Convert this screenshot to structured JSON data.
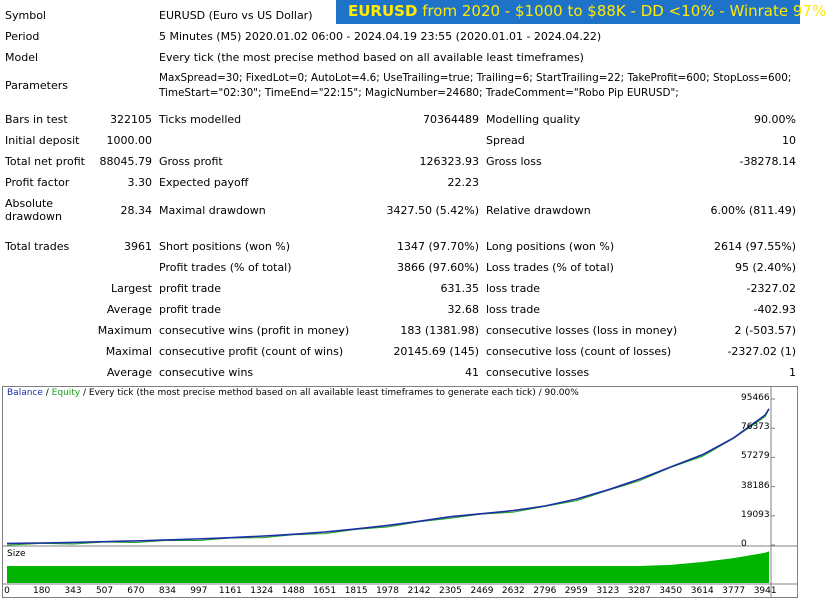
{
  "banner": {
    "symbol": "EURUSD",
    "text": " from 2020 - $1000 to $88K - DD <10% - Winrate 97%"
  },
  "meta": {
    "symbol_label": "Symbol",
    "symbol_value": "EURUSD (Euro vs US Dollar)",
    "period_label": "Period",
    "period_value": "5 Minutes (M5) 2020.01.02 06:00 - 2024.04.19 23:55 (2020.01.01 - 2024.04.22)",
    "model_label": "Model",
    "model_value": "Every tick (the most precise method based on all available least timeframes)",
    "params_label": "Parameters",
    "params_line1": "MaxSpread=30; FixedLot=0; AutoLot=4.6; UseTrailing=true; Trailing=6; StartTrailing=22; TakeProfit=600; StopLoss=600;",
    "params_line2": "TimeStart=\"02:30\"; TimeEnd=\"22:15\"; MagicNumber=24680; TradeComment=\"Robo Pip EURUSD\";"
  },
  "stats": {
    "bars_label": "Bars in test",
    "bars_value": "322105",
    "ticks_label": "Ticks modelled",
    "ticks_value": "70364489",
    "mq_label": "Modelling quality",
    "mq_value": "90.00%",
    "deposit_label": "Initial deposit",
    "deposit_value": "1000.00",
    "spread_label": "Spread",
    "spread_value": "10",
    "netprofit_label": "Total net profit",
    "netprofit_value": "88045.79",
    "grossprofit_label": "Gross profit",
    "grossprofit_value": "126323.93",
    "grossloss_label": "Gross loss",
    "grossloss_value": "-38278.14",
    "pf_label": "Profit factor",
    "pf_value": "3.30",
    "ep_label": "Expected payoff",
    "ep_value": "22.23",
    "absdd_label1": "Absolute",
    "absdd_label2": "drawdown",
    "absdd_value": "28.34",
    "maxdd_label": "Maximal drawdown",
    "maxdd_value": "3427.50 (5.42%)",
    "reldd_label": "Relative drawdown",
    "reldd_value": "6.00% (811.49)",
    "trades_label": "Total trades",
    "trades_value": "3961",
    "short_label": "Short positions (won %)",
    "short_value": "1347 (97.70%)",
    "long_label": "Long positions (won %)",
    "long_value": "2614 (97.55%)",
    "pt_label": "Profit trades (% of total)",
    "pt_value": "3866 (97.60%)",
    "lt_label": "Loss trades (% of total)",
    "lt_value": "95 (2.40%)",
    "largest_label": "Largest",
    "lp_label": "profit trade",
    "lp_value": "631.35",
    "ll_label": "loss trade",
    "ll_value": "-2327.02",
    "average_label": "Average",
    "ap_label": "profit trade",
    "ap_value": "32.68",
    "al_label": "loss trade",
    "al_value": "-402.93",
    "maximum_label": "Maximum",
    "mcw_label": "consecutive wins (profit in money)",
    "mcw_value": "183 (1381.98)",
    "mcl_label": "consecutive losses (loss in money)",
    "mcl_value": "2 (-503.57)",
    "maximal_label": "Maximal",
    "mcp_label": "consecutive profit (count of wins)",
    "mcp_value": "20145.69 (145)",
    "mcloss_label": "consecutive loss (count of losses)",
    "mcloss_value": "-2327.02 (1)",
    "average2_label": "Average",
    "acw_label": "consecutive wins",
    "acw_value": "41",
    "acl_label": "consecutive losses",
    "acl_value": "1"
  },
  "chart_legend": {
    "balance": "Balance",
    "sep": " / ",
    "equity": "Equity",
    "rest": " / Every tick (the most precise method based on all available least timeframes to generate each tick) / 90.00%"
  },
  "colors": {
    "balance": "#1c2fa6",
    "equity": "#1aa31a",
    "size": "#00b400",
    "banner_bg": "#1e73c8",
    "banner_text": "#ffea00"
  },
  "chart_data": {
    "type": "line",
    "series": [
      {
        "name": "Balance",
        "x": [
          0,
          180,
          343,
          507,
          670,
          834,
          997,
          1161,
          1324,
          1488,
          1651,
          1815,
          1978,
          2142,
          2305,
          2469,
          2632,
          2796,
          2959,
          3123,
          3287,
          3450,
          3614,
          3777,
          3941,
          3961
        ],
        "values": [
          1000,
          1300,
          1700,
          2200,
          2700,
          3300,
          4000,
          4800,
          5800,
          7000,
          8500,
          10500,
          12800,
          15500,
          18500,
          20500,
          22500,
          25500,
          30000,
          36000,
          43000,
          51000,
          59000,
          70000,
          85000,
          89045
        ]
      }
    ],
    "size_label": "Size",
    "y_ticks": [
      95466,
      76373,
      57279,
      38186,
      19093,
      0
    ],
    "x_ticks": [
      0,
      180,
      343,
      507,
      670,
      834,
      997,
      1161,
      1324,
      1488,
      1651,
      1815,
      1978,
      2142,
      2305,
      2469,
      2632,
      2796,
      2959,
      3123,
      3287,
      3450,
      3614,
      3777,
      3941
    ],
    "ylim": [
      0,
      95466
    ],
    "xlim": [
      0,
      3961
    ]
  }
}
